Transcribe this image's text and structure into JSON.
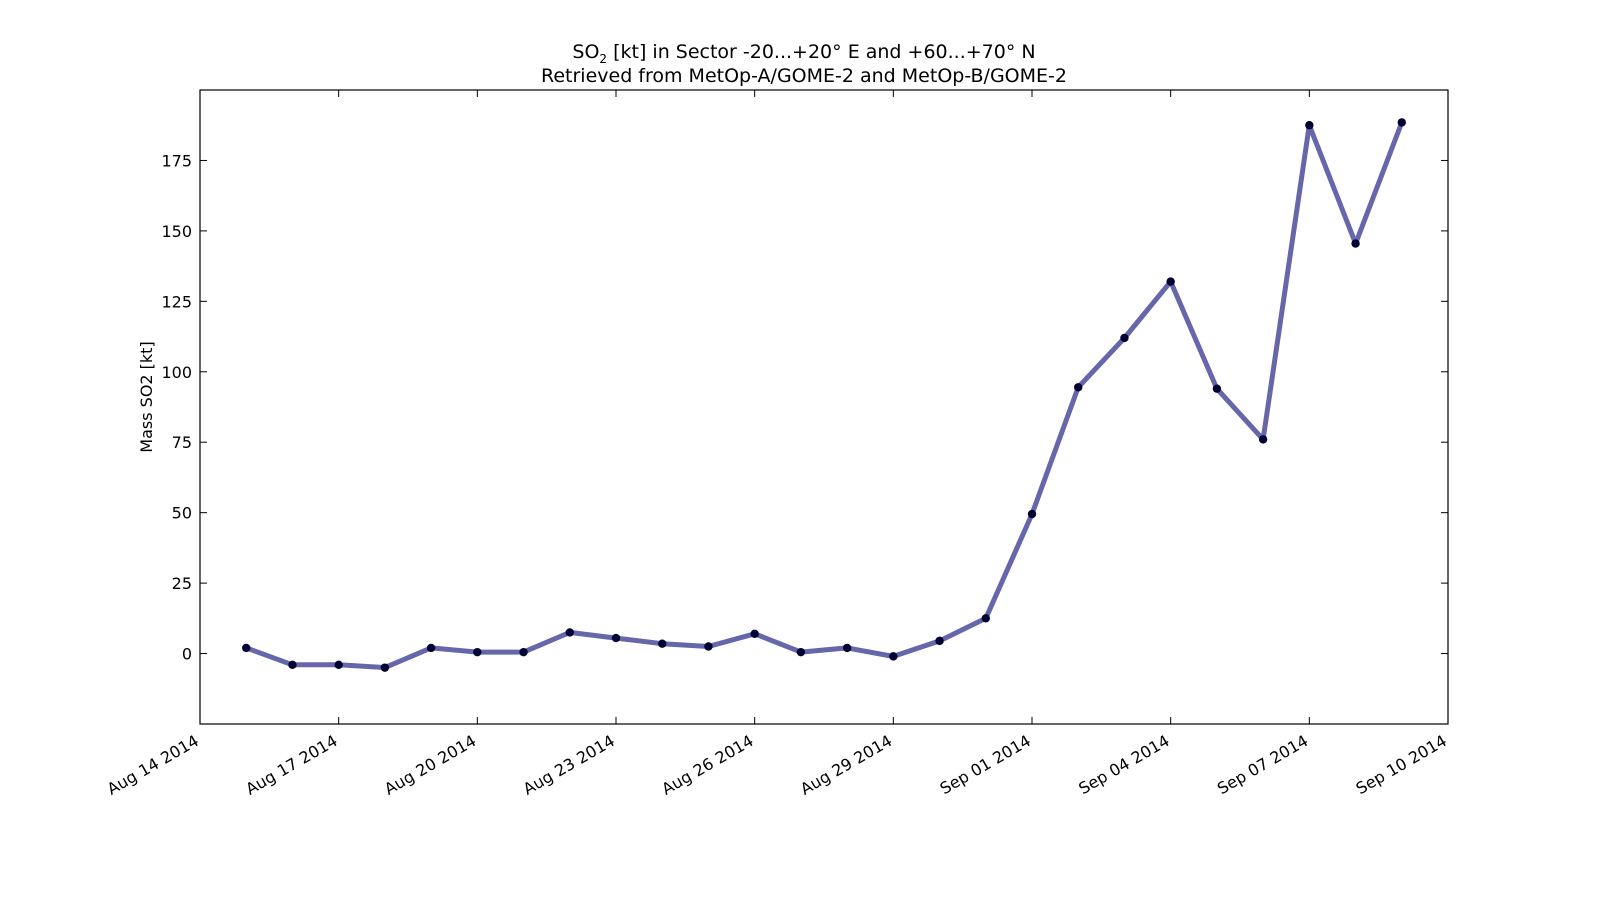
{
  "chart_data": {
    "type": "line",
    "title_prefix": "SO",
    "title_subscript": "2",
    "title_rest": " [kt] in Sector -20...+20° E and +60...+70° N",
    "subtitle": "Retrieved from MetOp-A/GOME-2 and MetOp-B/GOME-2",
    "xlabel": "",
    "ylabel": "Mass SO2 [kt]",
    "xlim": [
      "2014-08-14",
      "2014-09-10"
    ],
    "ylim": [
      -25,
      200
    ],
    "xticks": [
      {
        "date": "2014-08-14",
        "label": "Aug 14 2014"
      },
      {
        "date": "2014-08-17",
        "label": "Aug 17 2014"
      },
      {
        "date": "2014-08-20",
        "label": "Aug 20 2014"
      },
      {
        "date": "2014-08-23",
        "label": "Aug 23 2014"
      },
      {
        "date": "2014-08-26",
        "label": "Aug 26 2014"
      },
      {
        "date": "2014-08-29",
        "label": "Aug 29 2014"
      },
      {
        "date": "2014-09-01",
        "label": "Sep 01 2014"
      },
      {
        "date": "2014-09-04",
        "label": "Sep 04 2014"
      },
      {
        "date": "2014-09-07",
        "label": "Sep 07 2014"
      },
      {
        "date": "2014-09-10",
        "label": "Sep 10 2014"
      }
    ],
    "yticks": [
      0,
      25,
      50,
      75,
      100,
      125,
      150,
      175
    ],
    "grid": false,
    "line_color": "#6666aa",
    "marker_color": "#000033",
    "series": [
      {
        "x": [
          "2014-08-15",
          "2014-08-16",
          "2014-08-17",
          "2014-08-18",
          "2014-08-19",
          "2014-08-20",
          "2014-08-21",
          "2014-08-22",
          "2014-08-23",
          "2014-08-24",
          "2014-08-25",
          "2014-08-26",
          "2014-08-27",
          "2014-08-28",
          "2014-08-29",
          "2014-08-30",
          "2014-08-31",
          "2014-09-01",
          "2014-09-02",
          "2014-09-03",
          "2014-09-04",
          "2014-09-05",
          "2014-09-06",
          "2014-09-07",
          "2014-09-08",
          "2014-09-09"
        ],
        "values": [
          2,
          -4,
          -4,
          -5,
          2,
          0.5,
          0.5,
          7.5,
          5.5,
          3.5,
          2.5,
          7,
          0.5,
          2,
          -1,
          4.5,
          12.5,
          49.5,
          94.5,
          112,
          132,
          94,
          76,
          187.5,
          145.5,
          188.5
        ]
      }
    ]
  }
}
